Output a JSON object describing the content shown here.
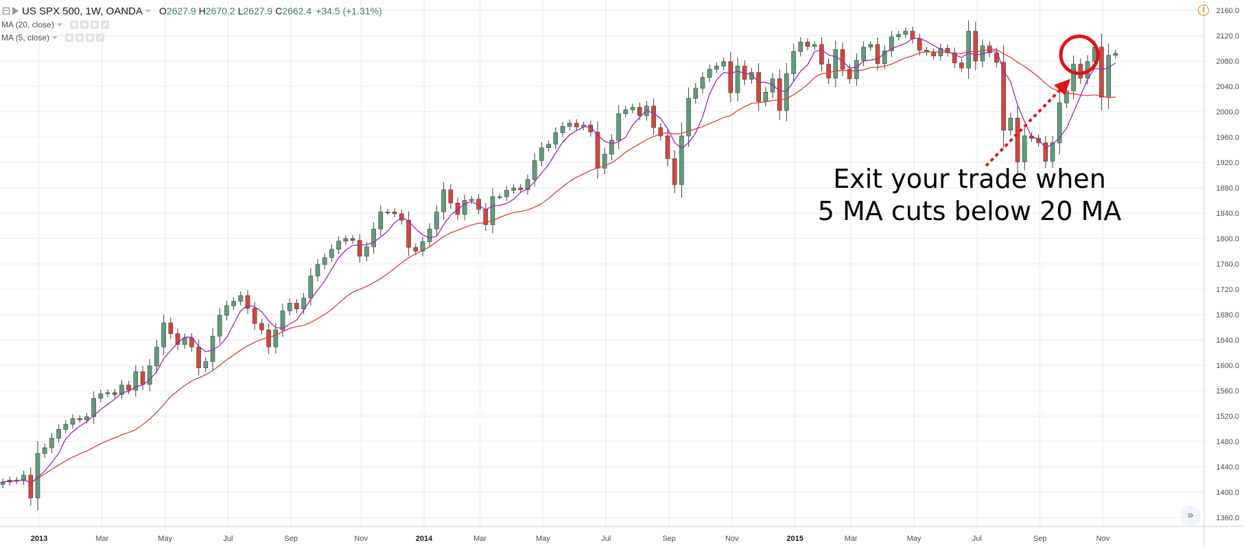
{
  "header": {
    "symbol": "US SPX 500, 1W, OANDA",
    "open_label": "O",
    "open": "2627.9",
    "high_label": "H",
    "high": "2670.2",
    "low_label": "L",
    "low": "2627.9",
    "close_label": "C",
    "close": "2662.4",
    "change": "+34.5 (+1.31%)"
  },
  "indicators": [
    {
      "name": "MA (20, close)",
      "color": "#e53935"
    },
    {
      "name": "MA (5, close)",
      "color": "#9c27b0"
    }
  ],
  "icons": {
    "warning": "warning-icon",
    "warning_glyph": "!",
    "goto_realtime": "double-chevron-right-icon",
    "goto_glyph": "»"
  },
  "annotation": {
    "line1": "Exit your trade when",
    "line2": "5 MA cuts below 20 MA",
    "circle_color": "#e01414",
    "arrow_color": "#e01414"
  },
  "colors": {
    "up": "#5e9e7a",
    "down": "#d6453a",
    "ma20": "#e53935",
    "ma5": "#9c27b0",
    "grid": "#e9e9ee"
  },
  "chart_data": {
    "type": "candlestick",
    "title": "US SPX 500, 1W, OANDA",
    "ylim": [
      1340,
      2180
    ],
    "y_ticks": [
      1360,
      1400,
      1440,
      1480,
      1520,
      1560,
      1600,
      1640,
      1680,
      1720,
      1760,
      1800,
      1840,
      1880,
      1920,
      1960,
      2000,
      2040,
      2080,
      2120,
      2160
    ],
    "y_tick_labels": [
      "1360.0",
      "1400.0",
      "1440.0",
      "1480.0",
      "1520.0",
      "1560.0",
      "1600.0",
      "1640.0",
      "1680.0",
      "1720.0",
      "1760.0",
      "1800.0",
      "1840.0",
      "1880.0",
      "1920.0",
      "1960.0",
      "2000.0",
      "2040.0",
      "2080.0",
      "2120.0",
      "2160.0"
    ],
    "x_ticks": [
      {
        "label": "2013",
        "week": 5,
        "bold": true
      },
      {
        "label": "Mar",
        "week": 14
      },
      {
        "label": "May",
        "week": 23
      },
      {
        "label": "Jul",
        "week": 32
      },
      {
        "label": "Sep",
        "week": 41
      },
      {
        "label": "Nov",
        "week": 51
      },
      {
        "label": "2014",
        "week": 60,
        "bold": true
      },
      {
        "label": "Mar",
        "week": 68
      },
      {
        "label": "May",
        "week": 77
      },
      {
        "label": "Jul",
        "week": 86
      },
      {
        "label": "Sep",
        "week": 95
      },
      {
        "label": "Nov",
        "week": 104
      },
      {
        "label": "2015",
        "week": 113,
        "bold": true
      },
      {
        "label": "Mar",
        "week": 121
      },
      {
        "label": "May",
        "week": 130
      },
      {
        "label": "Jul",
        "week": 139
      },
      {
        "label": "Sep",
        "week": 148
      },
      {
        "label": "Nov",
        "week": 157
      }
    ],
    "closes": [
      1416,
      1419,
      1418,
      1427,
      1391,
      1461,
      1470,
      1485,
      1499,
      1507,
      1516,
      1514,
      1519,
      1548,
      1555,
      1557,
      1554,
      1569,
      1561,
      1590,
      1570,
      1599,
      1629,
      1667,
      1650,
      1633,
      1643,
      1629,
      1596,
      1606,
      1646,
      1679,
      1694,
      1701,
      1710,
      1690,
      1666,
      1656,
      1629,
      1656,
      1686,
      1698,
      1689,
      1706,
      1741,
      1759,
      1770,
      1783,
      1796,
      1800,
      1797,
      1772,
      1787,
      1815,
      1842,
      1842,
      1839,
      1829,
      1786,
      1780,
      1795,
      1815,
      1842,
      1877,
      1856,
      1838,
      1860,
      1862,
      1846,
      1822,
      1866,
      1866,
      1876,
      1880,
      1877,
      1893,
      1923,
      1943,
      1949,
      1967,
      1977,
      1982,
      1976,
      1979,
      1968,
      1911,
      1933,
      1955,
      1997,
      2003,
      2007,
      1994,
      2009,
      1975,
      1962,
      1926,
      1885,
      1962,
      2021,
      2037,
      2054,
      2067,
      2072,
      2079,
      2030,
      2072,
      2051,
      2062,
      2016,
      2031,
      2052,
      2002,
      2060,
      2095,
      2110,
      2103,
      2106,
      2075,
      2053,
      2098,
      2067,
      2052,
      2081,
      2102,
      2106,
      2076,
      2096,
      2118,
      2122,
      2127,
      2115,
      2097,
      2094,
      2088,
      2100,
      2093,
      2077,
      2069,
      2127,
      2080,
      2104,
      2093,
      2078,
      1971,
      1990,
      1921,
      1962,
      1958,
      1951,
      1922,
      1951,
      2014,
      2033,
      2075,
      2053,
      2079,
      2102,
      2023,
      2089,
      2092
    ]
  }
}
